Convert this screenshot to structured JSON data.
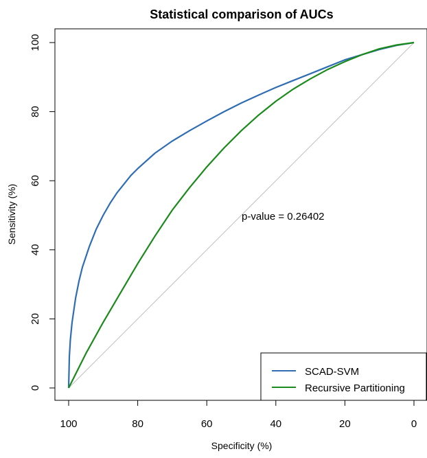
{
  "chart_data": {
    "type": "line",
    "title": "Statistical comparison of AUCs",
    "xlabel": "Specificity (%)",
    "ylabel": "Sensitivity (%)",
    "xlim": [
      100,
      0
    ],
    "ylim": [
      0,
      100
    ],
    "x_reversed": true,
    "xticks": [
      "100",
      "80",
      "60",
      "40",
      "20",
      "0"
    ],
    "yticks": [
      "0",
      "20",
      "40",
      "60",
      "80",
      "100"
    ],
    "grid": false,
    "legend_position": "bottom-right",
    "annotation": "p-value = 0.26402",
    "reference_line": {
      "from": [
        100,
        0
      ],
      "to": [
        0,
        100
      ],
      "color": "#c0c0c0"
    },
    "series": [
      {
        "name": "SCAD-SVM",
        "color": "#2e6db4",
        "points": [
          [
            100,
            0
          ],
          [
            99.8,
            9
          ],
          [
            99.5,
            14
          ],
          [
            99,
            19
          ],
          [
            98,
            26
          ],
          [
            97,
            31
          ],
          [
            96,
            35
          ],
          [
            94,
            41
          ],
          [
            92,
            46
          ],
          [
            90,
            50
          ],
          [
            88,
            53.5
          ],
          [
            86,
            56.5
          ],
          [
            84,
            59
          ],
          [
            82,
            61.5
          ],
          [
            80,
            63.5
          ],
          [
            75,
            68
          ],
          [
            70,
            71.5
          ],
          [
            65,
            74.5
          ],
          [
            60,
            77.3
          ],
          [
            55,
            80
          ],
          [
            50,
            82.5
          ],
          [
            45,
            84.8
          ],
          [
            40,
            87
          ],
          [
            35,
            89
          ],
          [
            30,
            91
          ],
          [
            25,
            93
          ],
          [
            20,
            95
          ],
          [
            15,
            96.5
          ],
          [
            10,
            98
          ],
          [
            5,
            99.2
          ],
          [
            0,
            100
          ]
        ]
      },
      {
        "name": "Recursive Partitioning",
        "color": "#1a8a1a",
        "points": [
          [
            100,
            0
          ],
          [
            95,
            10
          ],
          [
            90,
            19
          ],
          [
            85,
            27.5
          ],
          [
            80,
            36
          ],
          [
            75,
            44
          ],
          [
            70,
            51.5
          ],
          [
            65,
            58
          ],
          [
            60,
            64
          ],
          [
            55,
            69.5
          ],
          [
            50,
            74.5
          ],
          [
            45,
            79
          ],
          [
            40,
            83
          ],
          [
            35,
            86.5
          ],
          [
            30,
            89.5
          ],
          [
            25,
            92.2
          ],
          [
            20,
            94.5
          ],
          [
            15,
            96.5
          ],
          [
            10,
            98.2
          ],
          [
            5,
            99.3
          ],
          [
            0,
            100
          ]
        ]
      }
    ]
  }
}
